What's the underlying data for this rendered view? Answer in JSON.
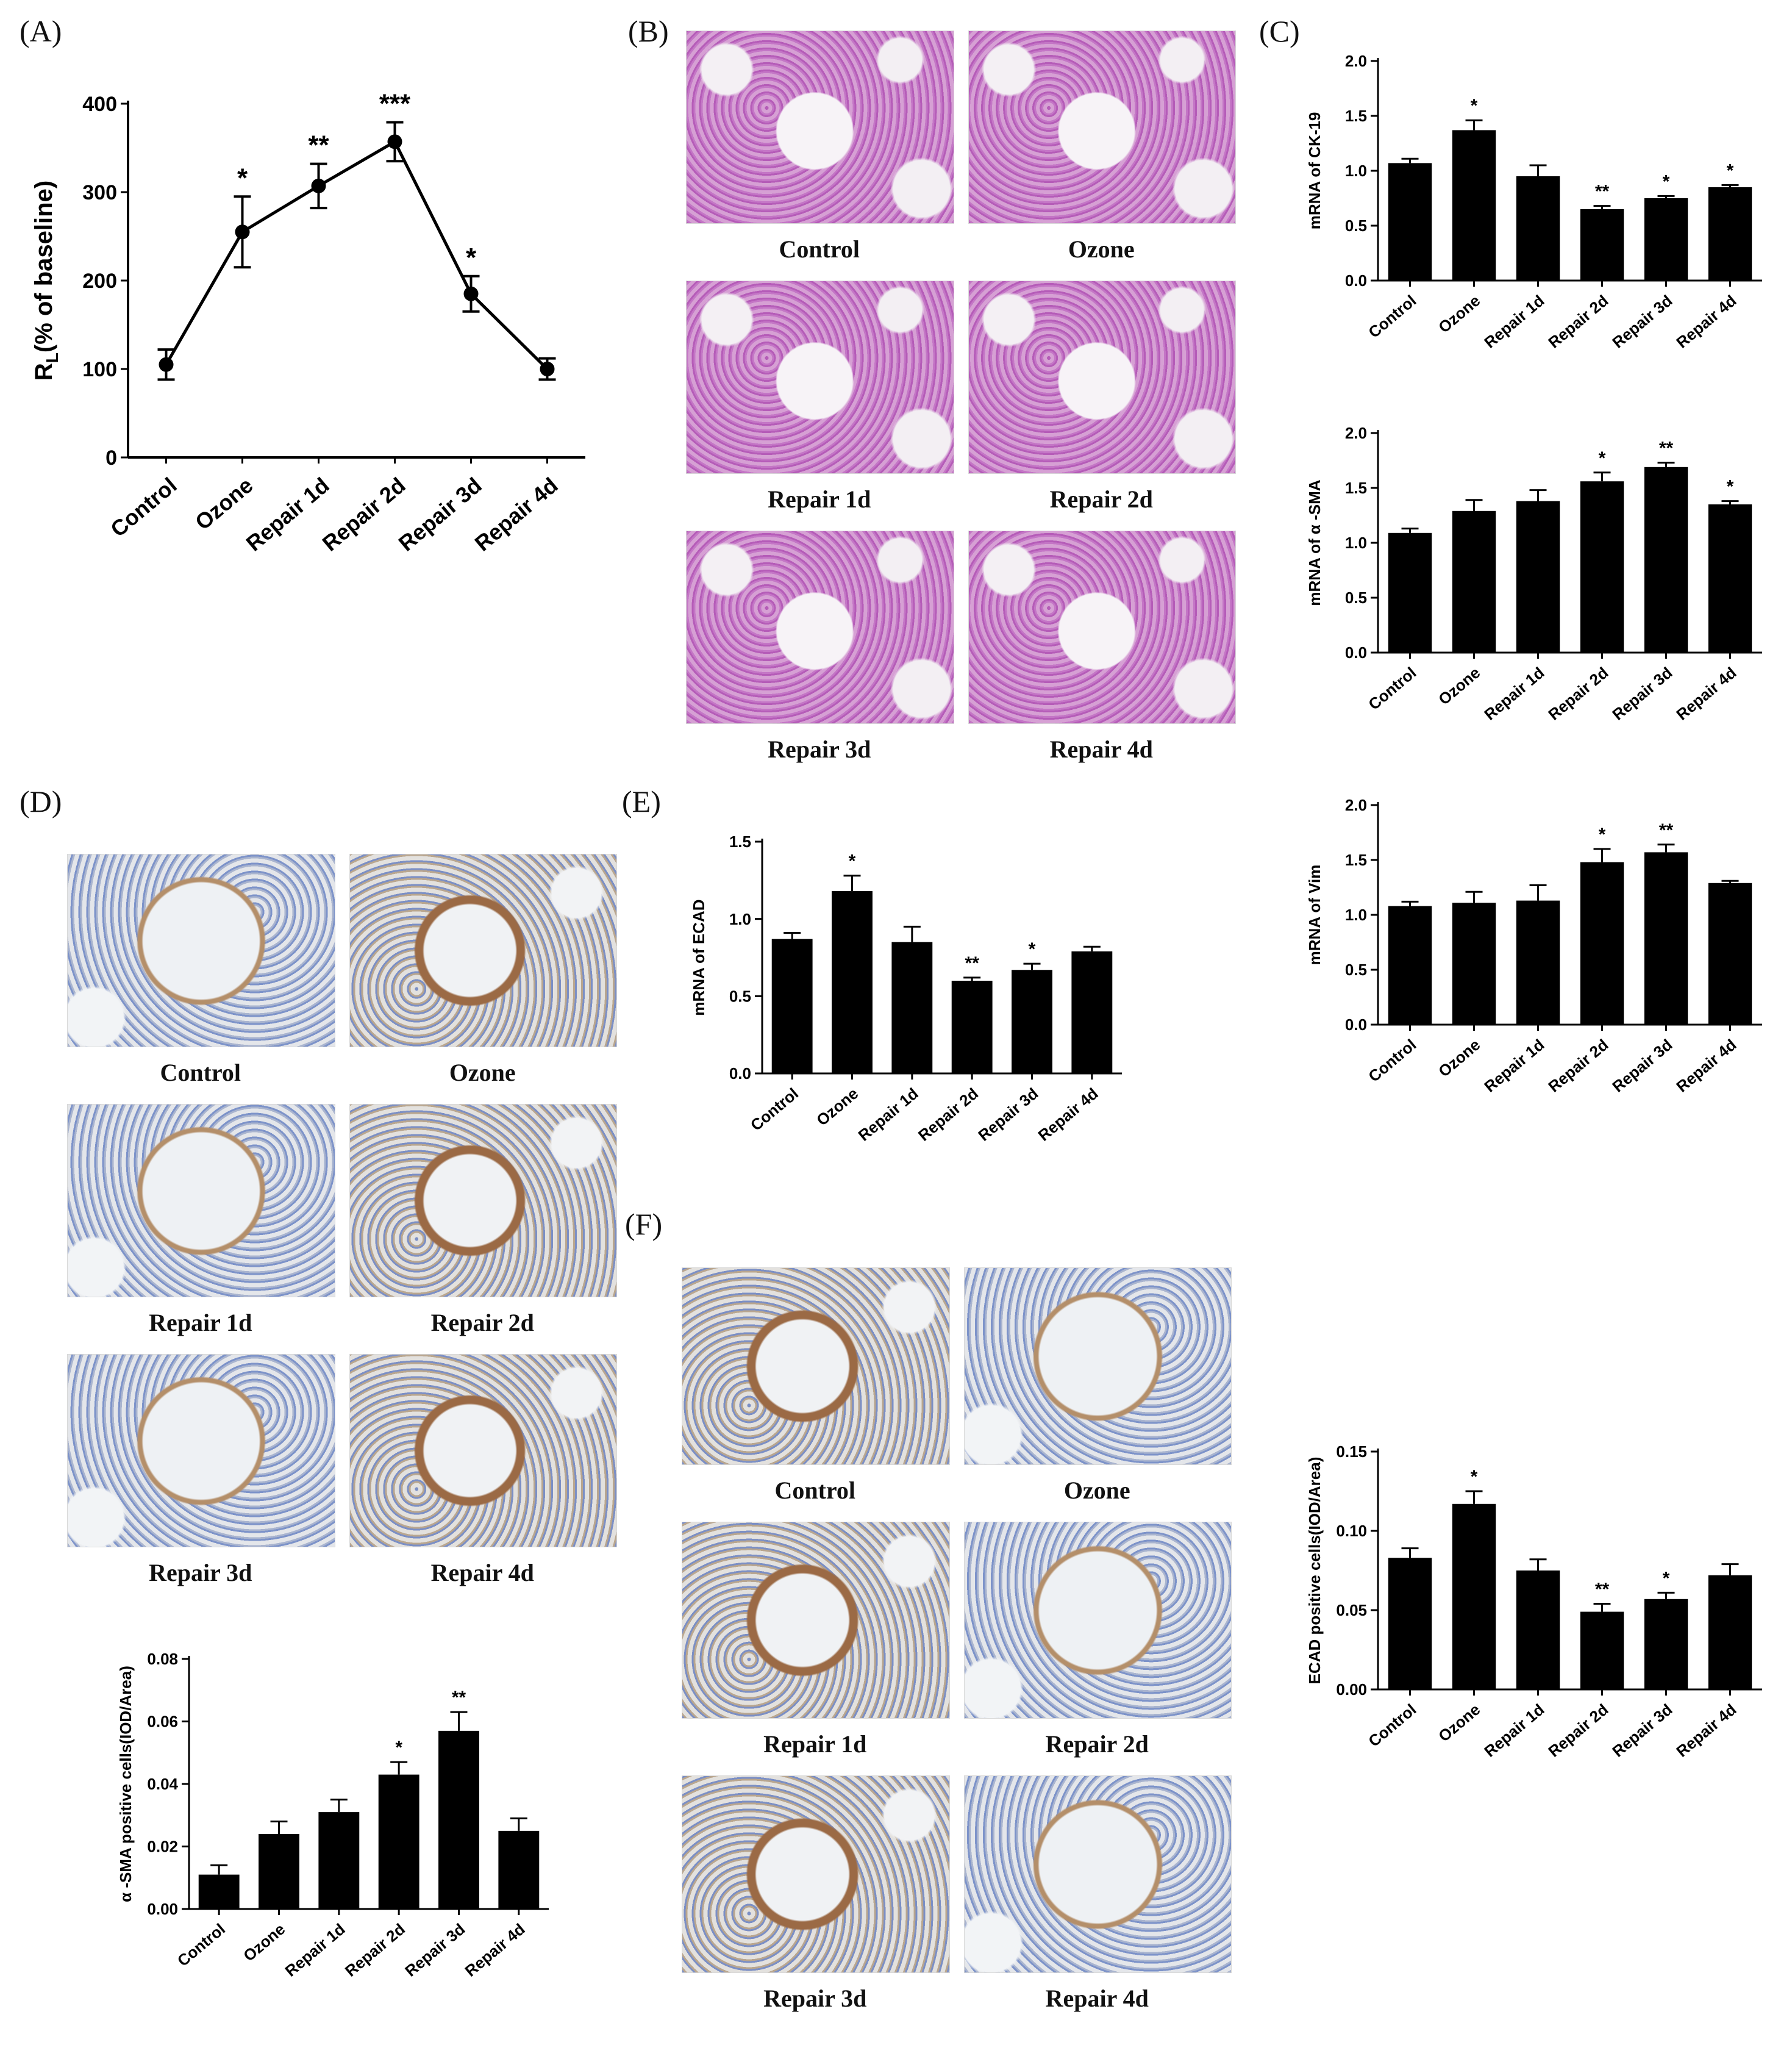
{
  "labels": {
    "A": "(A)",
    "B": "(B)",
    "C": "(C)",
    "D": "(D)",
    "E": "(E)",
    "F": "(F)"
  },
  "micrographs": {
    "B": [
      "Control",
      "Ozone",
      "Repair 1d",
      "Repair 2d",
      "Repair 3d",
      "Repair 4d"
    ],
    "D": [
      "Control",
      "Ozone",
      "Repair 1d",
      "Repair 2d",
      "Repair 3d",
      "Repair 4d"
    ],
    "F": [
      "Control",
      "Ozone",
      "Repair 1d",
      "Repair 2d",
      "Repair 3d",
      "Repair 4d"
    ]
  },
  "chart_data": [
    {
      "id": "A",
      "type": "line",
      "categories": [
        "Control",
        "Ozone",
        "Repair 1d",
        "Repair 2d",
        "Repair 3d",
        "Repair 4d"
      ],
      "values": [
        105,
        255,
        307,
        357,
        185,
        100
      ],
      "errors": [
        17,
        40,
        25,
        22,
        20,
        12
      ],
      "significance": [
        "",
        "*",
        "**",
        "***",
        "*",
        ""
      ],
      "ylabel_main": "R",
      "ylabel_sub": "L",
      "ylabel_rest": "(% of baseline)",
      "ylim": [
        0,
        400
      ],
      "yticks": [
        0,
        100,
        200,
        300,
        400
      ]
    },
    {
      "id": "C1",
      "type": "bar",
      "categories": [
        "Control",
        "Ozone",
        "Repair 1d",
        "Repair 2d",
        "Repair 3d",
        "Repair 4d"
      ],
      "values": [
        1.07,
        1.37,
        0.95,
        0.65,
        0.75,
        0.85
      ],
      "errors": [
        0.04,
        0.09,
        0.1,
        0.03,
        0.02,
        0.02
      ],
      "significance": [
        "",
        "*",
        "",
        "**",
        "*",
        "*"
      ],
      "ylabel": "mRNA of CK-19",
      "ylim": [
        0,
        2
      ],
      "yticks": [
        "0.0",
        "0.5",
        "1.0",
        "1.5",
        "2.0"
      ]
    },
    {
      "id": "C2",
      "type": "bar",
      "categories": [
        "Control",
        "Ozone",
        "Repair 1d",
        "Repair 2d",
        "Repair 3d",
        "Repair 4d"
      ],
      "values": [
        1.09,
        1.29,
        1.38,
        1.56,
        1.69,
        1.35
      ],
      "errors": [
        0.04,
        0.1,
        0.1,
        0.08,
        0.04,
        0.03
      ],
      "significance": [
        "",
        "",
        "",
        "*",
        "**",
        "*"
      ],
      "ylabel": "mRNA of α -SMA",
      "ylim": [
        0,
        2
      ],
      "yticks": [
        "0.0",
        "0.5",
        "1.0",
        "1.5",
        "2.0"
      ]
    },
    {
      "id": "C3",
      "type": "bar",
      "categories": [
        "Control",
        "Ozone",
        "Repair 1d",
        "Repair 2d",
        "Repair 3d",
        "Repair 4d"
      ],
      "values": [
        1.08,
        1.11,
        1.13,
        1.48,
        1.57,
        1.29
      ],
      "errors": [
        0.04,
        0.1,
        0.14,
        0.12,
        0.07,
        0.02
      ],
      "significance": [
        "",
        "",
        "",
        "*",
        "**",
        ""
      ],
      "ylabel": "mRNA of Vim",
      "ylim": [
        0,
        2
      ],
      "yticks": [
        "0.0",
        "0.5",
        "1.0",
        "1.5",
        "2.0"
      ]
    },
    {
      "id": "E",
      "type": "bar",
      "categories": [
        "Control",
        "Ozone",
        "Repair 1d",
        "Repair 2d",
        "Repair 3d",
        "Repair 4d"
      ],
      "values": [
        0.87,
        1.18,
        0.85,
        0.6,
        0.67,
        0.79
      ],
      "errors": [
        0.04,
        0.1,
        0.1,
        0.02,
        0.04,
        0.03
      ],
      "significance": [
        "",
        "*",
        "",
        "**",
        "*",
        ""
      ],
      "ylabel": "mRNA of ECAD",
      "ylim": [
        0,
        1.5
      ],
      "yticks": [
        "0.0",
        "0.5",
        "1.0",
        "1.5"
      ]
    },
    {
      "id": "D",
      "type": "bar",
      "categories": [
        "Control",
        "Ozone",
        "Repair 1d",
        "Repair 2d",
        "Repair 3d",
        "Repair 4d"
      ],
      "values": [
        0.011,
        0.024,
        0.031,
        0.043,
        0.057,
        0.025
      ],
      "errors": [
        0.003,
        0.004,
        0.004,
        0.004,
        0.006,
        0.004
      ],
      "significance": [
        "",
        "",
        "",
        "*",
        "**",
        ""
      ],
      "ylabel": "α -SMA positive cells(IOD/Area)",
      "ylim": [
        0,
        0.08
      ],
      "yticks": [
        "0.00",
        "0.02",
        "0.04",
        "0.06",
        "0.08"
      ]
    },
    {
      "id": "F",
      "type": "bar",
      "categories": [
        "Control",
        "Ozone",
        "Repair 1d",
        "Repair 2d",
        "Repair 3d",
        "Repair 4d"
      ],
      "values": [
        0.083,
        0.117,
        0.075,
        0.049,
        0.057,
        0.072
      ],
      "errors": [
        0.006,
        0.008,
        0.007,
        0.005,
        0.004,
        0.007
      ],
      "significance": [
        "",
        "*",
        "",
        "**",
        "*",
        ""
      ],
      "ylabel": "ECAD positive cells(IOD/Area)",
      "ylim": [
        0,
        0.15
      ],
      "yticks": [
        "0.00",
        "0.05",
        "0.10",
        "0.15"
      ]
    }
  ]
}
